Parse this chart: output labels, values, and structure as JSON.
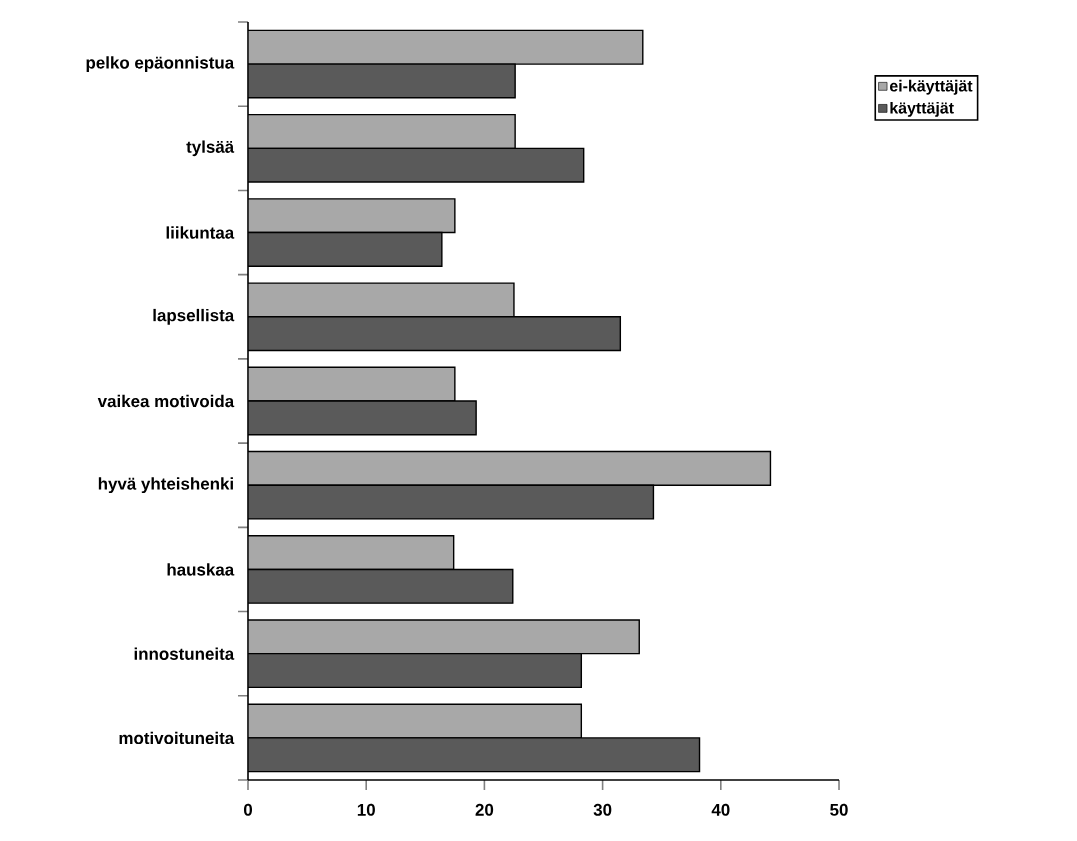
{
  "chart_data": {
    "type": "bar",
    "orientation": "horizontal",
    "categories": [
      "pelko epäonnistua",
      "tylsää",
      "liikuntaa",
      "lapsellista",
      "vaikea motivoida",
      "hyvä yhteishenki",
      "hauskaa",
      "innostuneita",
      "motivoituneita"
    ],
    "series": [
      {
        "name": "ei-käyttäjät",
        "color": "#a8a8a8",
        "values": [
          33.4,
          22.6,
          17.5,
          22.5,
          17.5,
          44.2,
          17.4,
          33.1,
          28.2
        ]
      },
      {
        "name": "käyttäjät",
        "color": "#5a5a5a",
        "values": [
          22.6,
          28.4,
          16.4,
          31.5,
          19.3,
          34.3,
          22.4,
          28.2,
          38.2
        ]
      }
    ],
    "xlim": [
      0,
      50
    ],
    "xticks": [
      0,
      10,
      20,
      30,
      40,
      50
    ],
    "legend": "top right",
    "grid": false
  }
}
